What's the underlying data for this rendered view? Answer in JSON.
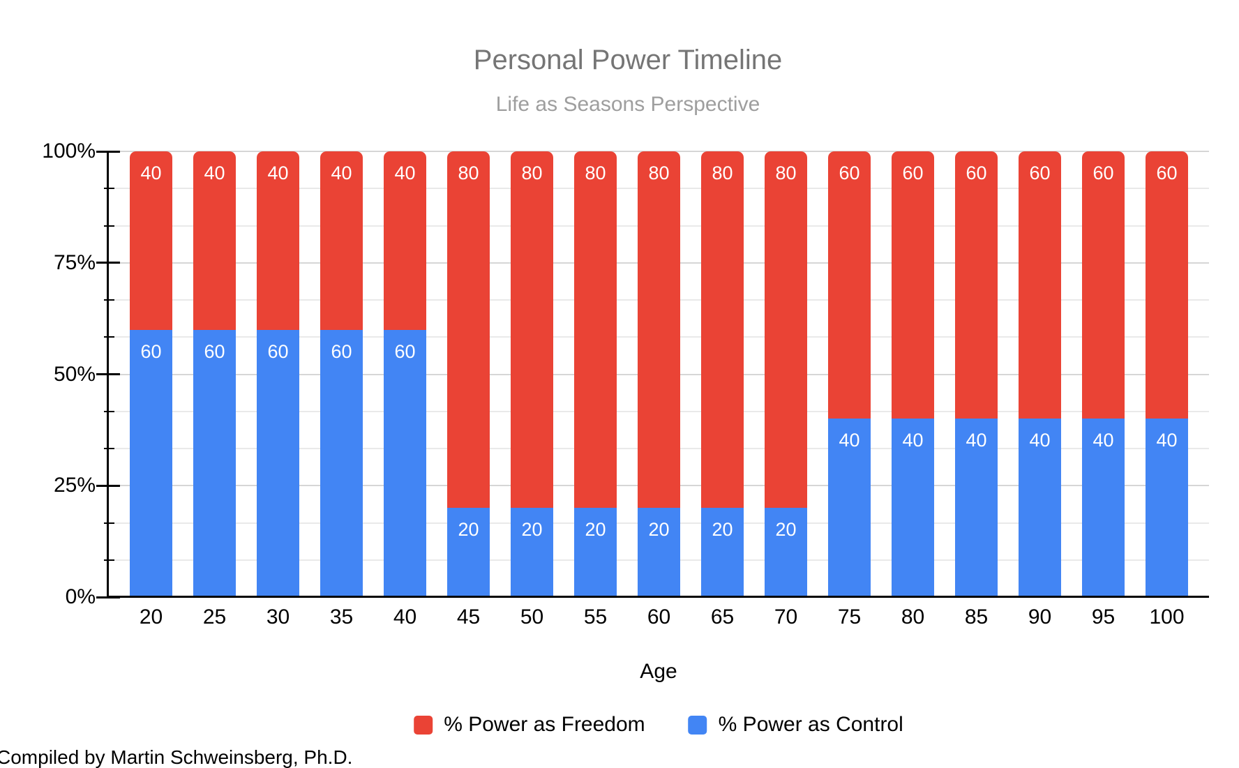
{
  "title": "Personal Power Timeline",
  "subtitle": "Life as Seasons Perspective",
  "footer": "Compiled by Martin Schweinsberg, Ph.D.",
  "colors": {
    "freedom": "#EA4335",
    "control": "#4285F4",
    "title_text": "#757575",
    "subtitle_text": "#9E9E9E",
    "gridline_minor": "#E9E9E9",
    "gridline_major": "#D6D6D6",
    "axis": "#000000",
    "bar_value_text": "#FFFFFF"
  },
  "chart_data": {
    "type": "bar",
    "stacked": true,
    "stacked_total_pct": 100,
    "title": "Personal Power Timeline",
    "subtitle": "Life as Seasons Perspective",
    "xlabel": "Age",
    "ylabel": "",
    "categories": [
      "20",
      "25",
      "30",
      "35",
      "40",
      "45",
      "50",
      "55",
      "60",
      "65",
      "70",
      "75",
      "80",
      "85",
      "90",
      "95",
      "100"
    ],
    "series": [
      {
        "name": "% Power as Control",
        "color": "#4285F4",
        "values": [
          60,
          60,
          60,
          60,
          60,
          20,
          20,
          20,
          20,
          20,
          20,
          40,
          40,
          40,
          40,
          40,
          40
        ]
      },
      {
        "name": "% Power as Freedom",
        "color": "#EA4335",
        "values": [
          40,
          40,
          40,
          40,
          40,
          80,
          80,
          80,
          80,
          80,
          80,
          60,
          60,
          60,
          60,
          60,
          60
        ]
      }
    ],
    "data_labels_shown": true,
    "y_axis": {
      "range": [
        0,
        100
      ],
      "major_tick_labels": [
        "0%",
        "25%",
        "50%",
        "75%",
        "100%"
      ],
      "major_interval_pct": 25,
      "minor_interval_pct": 8.333,
      "grid": true
    },
    "legend": {
      "position": "bottom",
      "entries": [
        "% Power as Freedom",
        "% Power as Control"
      ]
    }
  }
}
